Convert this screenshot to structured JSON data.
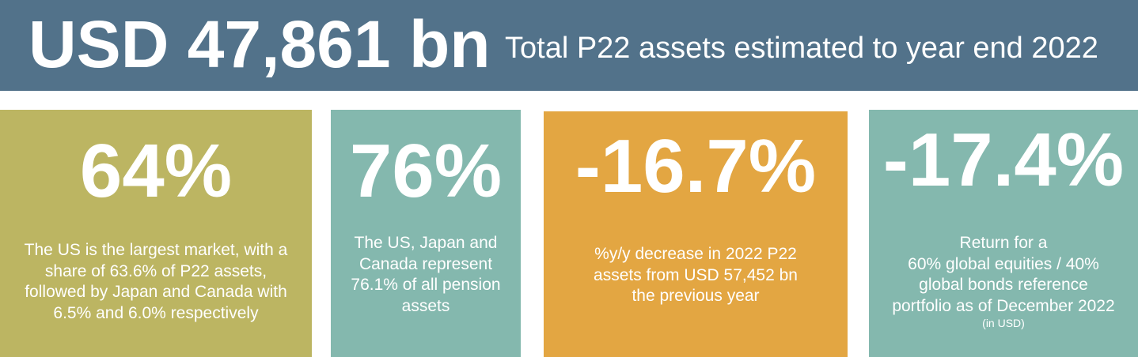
{
  "header": {
    "total_value": "USD 47,861 bn",
    "subtitle": "Total P22 assets estimated to year end 2022"
  },
  "cards": [
    {
      "stat": "64%",
      "lines": [
        "The US is the largest market, with a",
        "share of 63.6% of P22 assets,",
        "followed by Japan and Canada with",
        "6.5% and 6.0% respectively"
      ]
    },
    {
      "stat": "76%",
      "lines": [
        "The US, Japan and",
        "Canada represent",
        "76.1% of all pension",
        "assets"
      ]
    },
    {
      "stat": "-16.7%",
      "lines": [
        "%y/y decrease in 2022 P22",
        "assets from USD 57,452 bn",
        "the previous year"
      ]
    },
    {
      "stat": "-17.4%",
      "lines": [
        "Return for a",
        "60% global equities / 40%",
        "global bonds reference",
        "portfolio as of December 2022"
      ],
      "note": "(in USD)"
    }
  ],
  "colors": {
    "header": "#52728a",
    "olive": "#bcb562",
    "teal": "#84b8ae",
    "orange": "#e3a642",
    "text": "#ffffff"
  }
}
